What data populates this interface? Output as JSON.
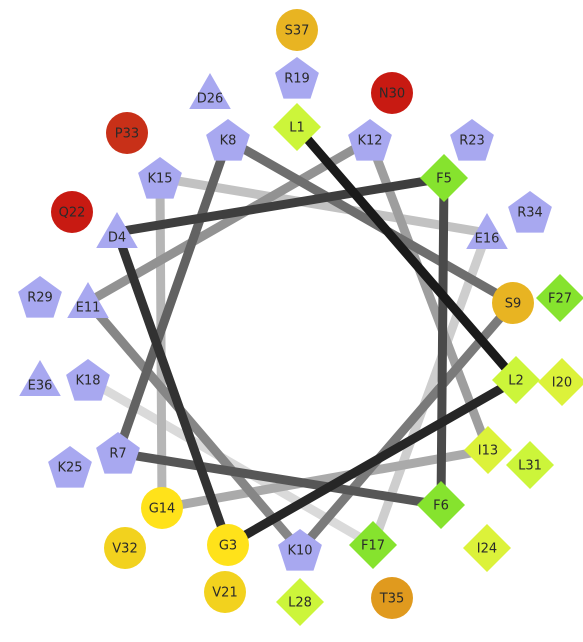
{
  "colors": {
    "hydrophobic_green": "#8ee62e",
    "hydrophobic_yellowgreen": "#d8f02a",
    "yellow": "#ffe21a",
    "amber": "#e8b820",
    "orange": "#e09a1e",
    "red": "#c81a12",
    "charged_lavender": "#a8a8f0",
    "connector_dark": "#1a1a1a",
    "connector_light": "#d8d8d8"
  },
  "residues": [
    {
      "label": "L1",
      "shape": "diamond",
      "color": "#ccf53a"
    },
    {
      "label": "L2",
      "shape": "diamond",
      "color": "#ccf53a"
    },
    {
      "label": "G3",
      "shape": "circle",
      "color": "#ffe21a"
    },
    {
      "label": "D4",
      "shape": "triangle",
      "color": "#a8a8f0"
    },
    {
      "label": "F5",
      "shape": "diamond",
      "color": "#86e32e"
    },
    {
      "label": "F6",
      "shape": "diamond",
      "color": "#86e32e"
    },
    {
      "label": "R7",
      "shape": "pentagon",
      "color": "#a8a8f0"
    },
    {
      "label": "K8",
      "shape": "pentagon",
      "color": "#a8a8f0"
    },
    {
      "label": "S9",
      "shape": "circle",
      "color": "#e8b422"
    },
    {
      "label": "K10",
      "shape": "pentagon",
      "color": "#a8a8f0"
    },
    {
      "label": "E11",
      "shape": "triangle",
      "color": "#a8a8f0"
    },
    {
      "label": "K12",
      "shape": "pentagon",
      "color": "#a8a8f0"
    },
    {
      "label": "I13",
      "shape": "diamond",
      "color": "#dcf23a"
    },
    {
      "label": "G14",
      "shape": "circle",
      "color": "#ffe21a"
    },
    {
      "label": "K15",
      "shape": "pentagon",
      "color": "#a8a8f0"
    },
    {
      "label": "E16",
      "shape": "triangle",
      "color": "#a8a8f0"
    },
    {
      "label": "F17",
      "shape": "diamond",
      "color": "#86e32e"
    },
    {
      "label": "K18",
      "shape": "pentagon",
      "color": "#a8a8f0"
    },
    {
      "label": "R19",
      "shape": "pentagon",
      "color": "#a8a8f0"
    },
    {
      "label": "I20",
      "shape": "diamond",
      "color": "#dcf23a"
    },
    {
      "label": "V21",
      "shape": "circle",
      "color": "#f2d21e"
    },
    {
      "label": "Q22",
      "shape": "circle",
      "color": "#c81a12"
    },
    {
      "label": "R23",
      "shape": "pentagon",
      "color": "#a8a8f0"
    },
    {
      "label": "I24",
      "shape": "diamond",
      "color": "#dcf23a"
    },
    {
      "label": "K25",
      "shape": "pentagon",
      "color": "#a8a8f0"
    },
    {
      "label": "D26",
      "shape": "triangle",
      "color": "#a8a8f0"
    },
    {
      "label": "F27",
      "shape": "diamond",
      "color": "#86e32e"
    },
    {
      "label": "L28",
      "shape": "diamond",
      "color": "#ccf53a"
    },
    {
      "label": "R29",
      "shape": "pentagon",
      "color": "#a8a8f0"
    },
    {
      "label": "N30",
      "shape": "circle",
      "color": "#c81a12"
    },
    {
      "label": "L31",
      "shape": "diamond",
      "color": "#ccf53a"
    },
    {
      "label": "V32",
      "shape": "circle",
      "color": "#f2d21e"
    },
    {
      "label": "P33",
      "shape": "circle",
      "color": "#c83018"
    },
    {
      "label": "R34",
      "shape": "pentagon",
      "color": "#a8a8f0"
    },
    {
      "label": "T35",
      "shape": "circle",
      "color": "#e09a1e"
    },
    {
      "label": "E36",
      "shape": "triangle",
      "color": "#a8a8f0"
    },
    {
      "label": "S37",
      "shape": "circle",
      "color": "#e8b422"
    }
  ]
}
